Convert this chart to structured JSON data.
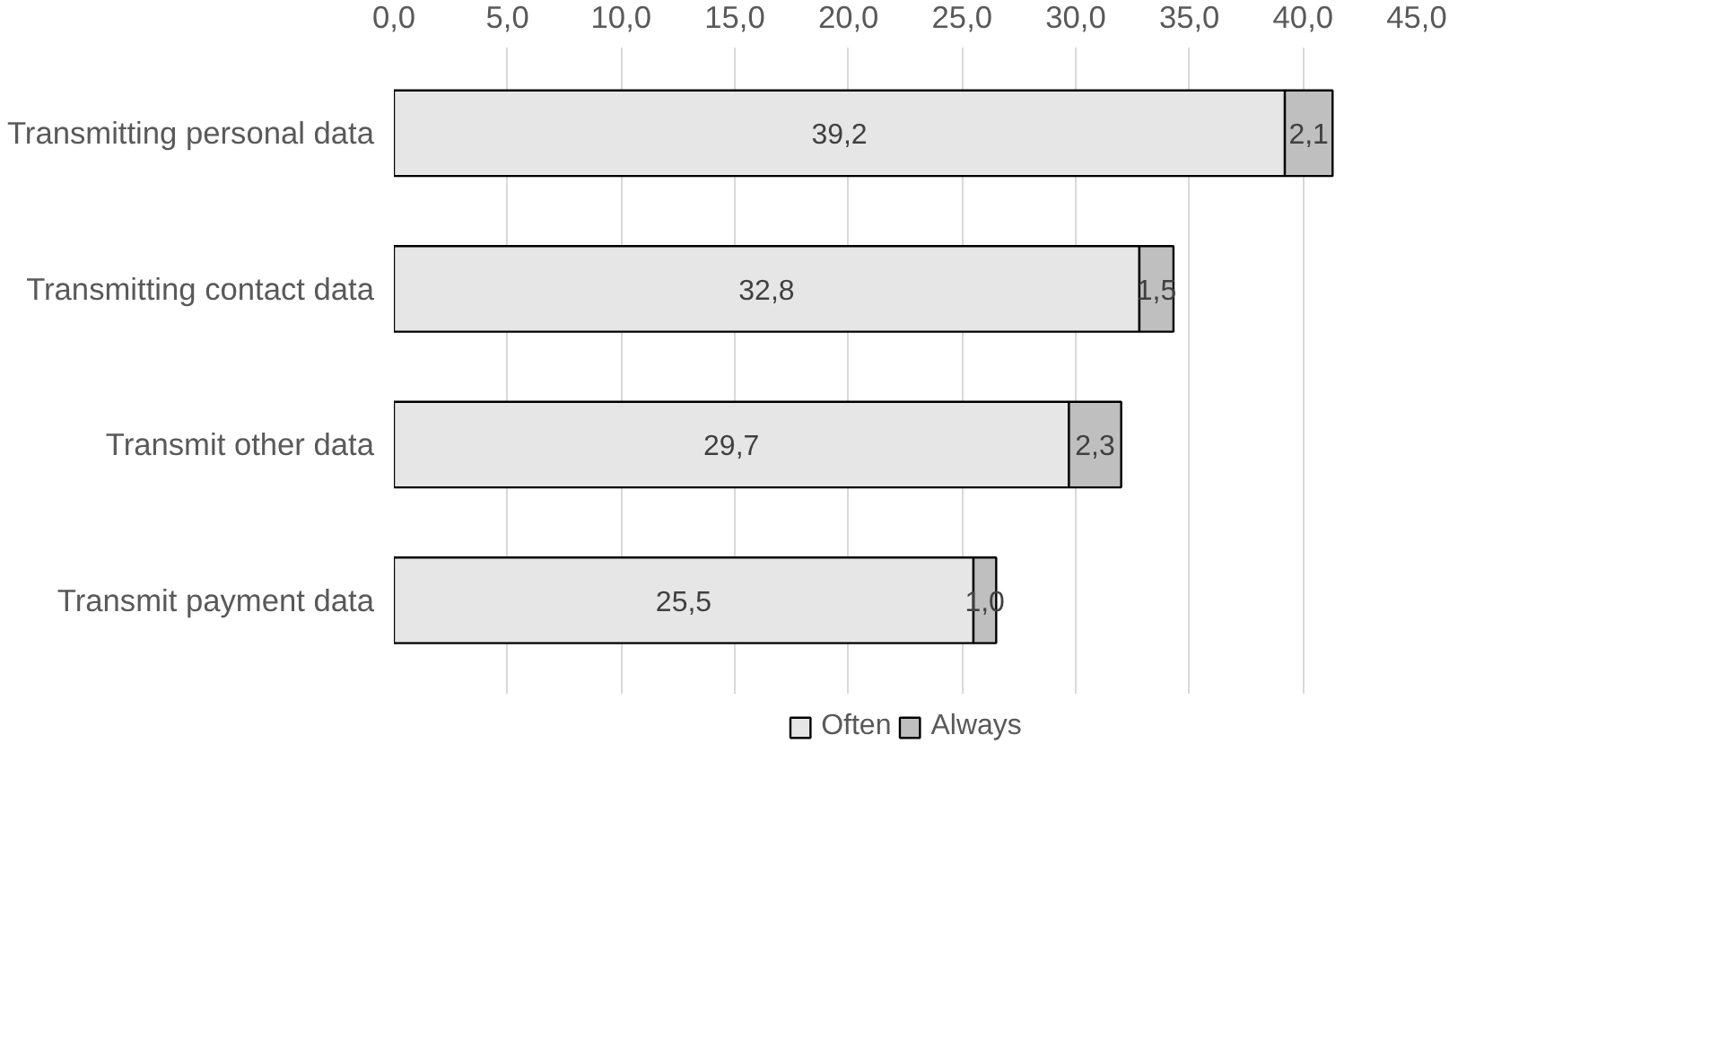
{
  "chart_data": {
    "type": "bar",
    "orientation": "horizontal",
    "stacked": true,
    "categories": [
      "Transmitting personal data",
      "Transmitting contact data",
      "Transmit other data",
      "Transmit payment data"
    ],
    "series": [
      {
        "name": "Often",
        "color": "#e7e6e6",
        "values": [
          39.2,
          32.8,
          29.7,
          25.5
        ],
        "value_labels": [
          "39,2",
          "32,8",
          "29,7",
          "25,5"
        ]
      },
      {
        "name": "Always",
        "color": "#bfbfbf",
        "values": [
          2.1,
          1.5,
          2.3,
          1.0
        ],
        "value_labels": [
          "2,1",
          "1,5",
          "2,3",
          "1,0"
        ]
      }
    ],
    "xlim": [
      0,
      45
    ],
    "xticks": [
      {
        "value": 0,
        "label": "0,0"
      },
      {
        "value": 5,
        "label": "5,0"
      },
      {
        "value": 10,
        "label": "10,0"
      },
      {
        "value": 15,
        "label": "15,0"
      },
      {
        "value": 20,
        "label": "20,0"
      },
      {
        "value": 25,
        "label": "25,0"
      },
      {
        "value": 30,
        "label": "30,0"
      },
      {
        "value": 35,
        "label": "35,0"
      },
      {
        "value": 40,
        "label": "40,0"
      },
      {
        "value": 45,
        "label": "45,0"
      }
    ],
    "grid": "x",
    "legend": "bottom"
  }
}
